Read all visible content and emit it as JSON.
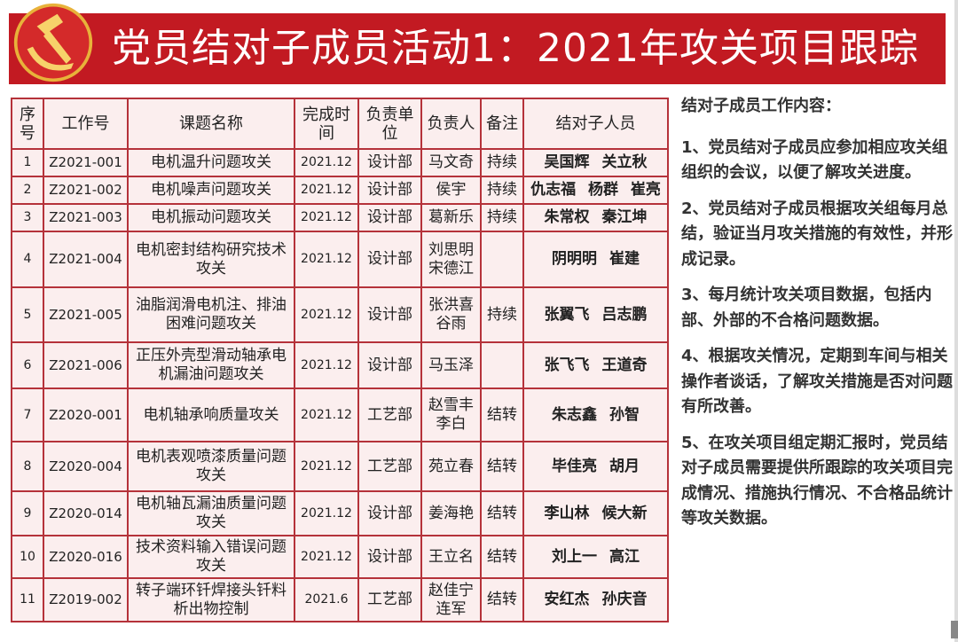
{
  "header": {
    "title": "党员结对子成员活动1：2021年攻关项目跟踪",
    "accent_color": "#c21a22"
  },
  "table": {
    "columns": [
      "序号",
      "工作号",
      "课题名称",
      "完成时间",
      "负责单位",
      "负责人",
      "备注",
      "结对子人员"
    ],
    "rows": [
      [
        "1",
        "Z2021-001",
        "电机温升问题攻关",
        "2021.12",
        "设计部",
        "马文奇",
        "持续",
        "吴国辉  关立秋"
      ],
      [
        "2",
        "Z2021-002",
        "电机噪声问题攻关",
        "2021.12",
        "设计部",
        "侯宇",
        "持续",
        "仇志福 杨群 崔亮"
      ],
      [
        "3",
        "Z2021-003",
        "电机振动问题攻关",
        "2021.12",
        "设计部",
        "葛新乐",
        "持续",
        "朱常权  秦江坤"
      ],
      [
        "4",
        "Z2021-004",
        "电机密封结构研究技术攻关",
        "2021.12",
        "设计部",
        "刘思明宋德江",
        "",
        "阴明明  崔建"
      ],
      [
        "5",
        "Z2021-005",
        "油脂润滑电机注、排油困难问题攻关",
        "2021.12",
        "设计部",
        "张洪喜谷雨",
        "持续",
        "张翼飞  吕志鹏"
      ],
      [
        "6",
        "Z2021-006",
        "正压外壳型滑动轴承电机漏油问题攻关",
        "2021.12",
        "设计部",
        "马玉泽",
        "",
        "张飞飞  王道奇"
      ],
      [
        "7",
        "Z2020-001",
        "电机轴承响质量攻关",
        "2021.12",
        "工艺部",
        "赵雪丰李白",
        "结转",
        "朱志鑫  孙智"
      ],
      [
        "8",
        "Z2020-004",
        "电机表观喷漆质量问题攻关",
        "2021.12",
        "工艺部",
        "苑立春",
        "结转",
        "毕佳亮  胡月"
      ],
      [
        "9",
        "Z2020-014",
        "电机轴瓦漏油质量问题攻关",
        "2021.12",
        "设计部",
        "姜海艳",
        "结转",
        "李山林  候大新"
      ],
      [
        "10",
        "Z2020-016",
        "技术资料输入错误问题攻关",
        "2021.12",
        "设计部",
        "王立名",
        "结转",
        "刘上一  高江"
      ],
      [
        "11",
        "Z2019-002",
        "转子端环钎焊接头钎料析出物控制",
        "2021.6",
        "工艺部",
        "赵佳宁连军",
        "结转",
        "安红杰  孙庆音"
      ]
    ]
  },
  "side": {
    "heading": "结对子成员工作内容：",
    "items": [
      "1、党员结对子成员应参加相应攻关组组织的会议，以便了解攻关进度。",
      "2、党员结对子成员根据攻关组每月总结，验证当月攻关措施的有效性，并形成记录。",
      "3、每月统计攻关项目数据，包括内部、外部的不合格问题数据。",
      "4、根据攻关情况，定期到车间与相关操作者谈话，了解攻关措施是否对问题有所改善。",
      "5、在攻关项目组定期汇报时，党员结对子成员需要提供所跟踪的攻关项目完成情况、措施执行情况、不合格品统计等攻关数据。"
    ]
  }
}
